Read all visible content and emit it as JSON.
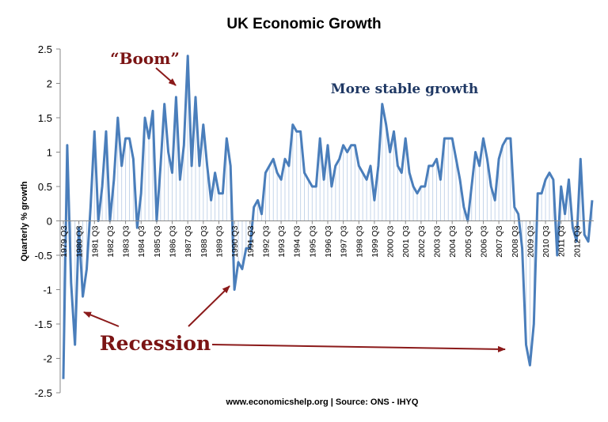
{
  "chart_data": {
    "type": "line",
    "title": "UK Economic Growth",
    "ylabel": "Quarterly % growth",
    "xlabel": "",
    "ylim": [
      -2.5,
      2.5
    ],
    "y_ticks": [
      "2.5",
      "2",
      "1.5",
      "1",
      "0.5",
      "0",
      "-0.5",
      "-1",
      "-1.5",
      "-2",
      "-2.5"
    ],
    "x_tick_labels": [
      "1979 Q3",
      "1980 Q3",
      "1981 Q3",
      "1982 Q3",
      "1983 Q3",
      "1984 Q3",
      "1985 Q3",
      "1986 Q3",
      "1987 Q3",
      "1988 Q3",
      "1989 Q3",
      "1990 Q3",
      "1991 Q3",
      "1992 Q3",
      "1993 Q3",
      "1994 Q3",
      "1995 Q3",
      "1996 Q3",
      "1997 Q3",
      "1998 Q3",
      "1999 Q3",
      "2000 Q3",
      "2001 Q3",
      "2002 Q3",
      "2003 Q3",
      "2004 Q3",
      "2005 Q3",
      "2006 Q3",
      "2007 Q3",
      "2008 Q3",
      "2009 Q3",
      "2010 Q3",
      "2011 Q3",
      "2012 Q3"
    ],
    "series": [
      {
        "name": "",
        "color": "#4a7ebb",
        "values": [
          -2.3,
          1.1,
          -0.9,
          -1.8,
          -0.1,
          -1.1,
          -0.7,
          0.2,
          1.3,
          0.0,
          0.5,
          1.3,
          0.0,
          0.6,
          1.5,
          0.8,
          1.2,
          1.2,
          0.9,
          -0.1,
          0.4,
          1.5,
          1.2,
          1.6,
          0.0,
          0.8,
          1.7,
          1.0,
          0.7,
          1.8,
          0.6,
          1.1,
          2.4,
          0.8,
          1.8,
          0.8,
          1.4,
          0.8,
          0.3,
          0.7,
          0.4,
          0.4,
          1.2,
          0.8,
          -1.0,
          -0.6,
          -0.7,
          -0.4,
          -0.4,
          0.2,
          0.3,
          0.1,
          0.7,
          0.8,
          0.9,
          0.7,
          0.6,
          0.9,
          0.8,
          1.4,
          1.3,
          1.3,
          0.7,
          0.6,
          0.5,
          0.5,
          1.2,
          0.6,
          1.1,
          0.5,
          0.8,
          0.9,
          1.1,
          1.0,
          1.1,
          1.1,
          0.8,
          0.7,
          0.6,
          0.8,
          0.3,
          0.8,
          1.7,
          1.4,
          1.0,
          1.3,
          0.8,
          0.7,
          1.2,
          0.7,
          0.5,
          0.4,
          0.5,
          0.5,
          0.8,
          0.8,
          0.9,
          0.6,
          1.2,
          1.2,
          1.2,
          0.9,
          0.6,
          0.2,
          0.0,
          0.5,
          1.0,
          0.8,
          1.2,
          0.9,
          0.5,
          0.3,
          0.9,
          1.1,
          1.2,
          1.2,
          0.2,
          0.1,
          -0.4,
          -1.8,
          -2.1,
          -1.5,
          0.4,
          0.4,
          0.6,
          0.7,
          0.6,
          -0.5,
          0.5,
          0.1,
          0.6,
          -0.1,
          -0.3,
          0.9,
          -0.2,
          -0.3,
          0.3
        ]
      }
    ],
    "annotations": [
      {
        "text": "“Boom”",
        "color": "#7b1414"
      },
      {
        "text": "More stable growth",
        "color": "#1f3864"
      },
      {
        "text": "Recession",
        "color": "#7b1414"
      }
    ],
    "source": "www.economicshelp.org | Source: ONS - IHYQ",
    "grid": false,
    "legend": "none"
  }
}
